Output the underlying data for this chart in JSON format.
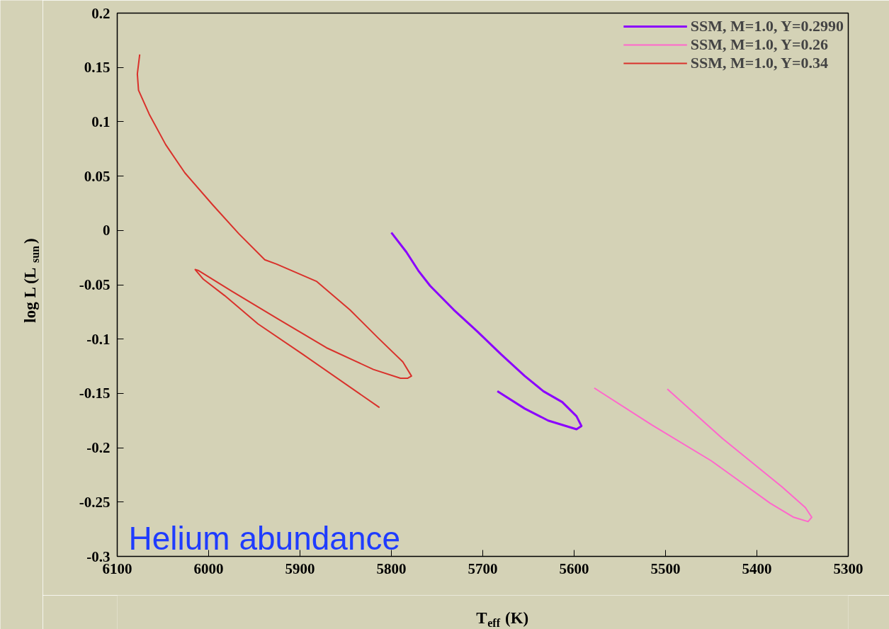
{
  "chart_data": {
    "type": "line",
    "xlabel": "T$_{eff}$ (K)",
    "ylabel": "log L (L$_{sun}$)",
    "xlim": [
      6100,
      5300
    ],
    "ylim": [
      -0.3,
      0.2
    ],
    "xticks": [
      6100,
      6000,
      5900,
      5800,
      5700,
      5600,
      5500,
      5400,
      5300
    ],
    "yticks": [
      -0.3,
      -0.25,
      -0.2,
      -0.15,
      -0.1,
      -0.05,
      0,
      0.05,
      0.1,
      0.15,
      0.2
    ],
    "grid": false,
    "legend": "top right",
    "annotations": [
      "Helium abundance"
    ],
    "series": [
      {
        "name": "SSM, M=1.0, Y=0.2990",
        "color": "#8b00ff",
        "x": [
          5800,
          5783.5,
          5770.5,
          5757.6,
          5731.8,
          5706,
          5680,
          5654,
          5633.6,
          5613,
          5597.4,
          5592,
          5597.4,
          5628.4,
          5654,
          5684
        ],
        "values": [
          -0.002,
          -0.02,
          -0.037,
          -0.051,
          -0.073,
          -0.093,
          -0.114,
          -0.134,
          -0.148,
          -0.158,
          -0.171,
          -0.18,
          -0.183,
          -0.175,
          -0.164,
          -0.148
        ]
      },
      {
        "name": "SSM, M=1.0, Y=0.26",
        "color": "#ff66cc",
        "x": [
          5578,
          5515,
          5450,
          5385.5,
          5359.7,
          5344,
          5340,
          5347,
          5372.6,
          5437,
          5498
        ],
        "values": [
          -0.145,
          -0.179,
          -0.212,
          -0.251,
          -0.264,
          -0.268,
          -0.264,
          -0.255,
          -0.236,
          -0.192,
          -0.146
        ]
      },
      {
        "name": "SSM, M=1.0, Y=0.34",
        "color": "#d9312b",
        "x": [
          6075.4,
          6078,
          6076.7,
          6065,
          6047,
          6026,
          5995,
          5967,
          5938.5,
          5925.6,
          5881.6,
          5845.5,
          5814.5,
          5787.4,
          5778,
          5782,
          5790,
          5819.6,
          5871,
          5923,
          5974.6,
          6010.9,
          6014.7,
          6005.7,
          5982.4,
          5946,
          5897,
          5813
        ],
        "values": [
          0.162,
          0.144,
          0.129,
          0.107,
          0.079,
          0.053,
          0.023,
          -0.003,
          -0.027,
          -0.031,
          -0.047,
          -0.073,
          -0.099,
          -0.121,
          -0.134,
          -0.136,
          -0.136,
          -0.128,
          -0.108,
          -0.082,
          -0.056,
          -0.037,
          -0.036,
          -0.045,
          -0.06,
          -0.086,
          -0.114,
          -0.163
        ]
      }
    ]
  }
}
